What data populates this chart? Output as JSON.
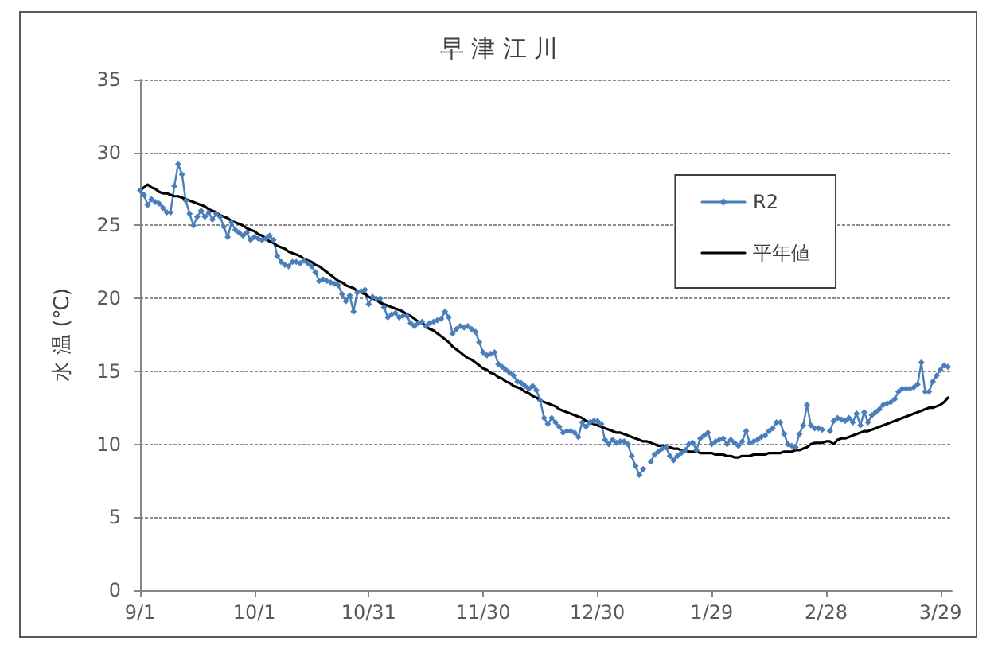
{
  "chart_data": {
    "type": "line",
    "title": "早 津 江 川",
    "ylabel": "水 温 (℃)",
    "categories": [
      "9/1",
      null,
      null,
      null,
      null,
      null,
      null,
      null,
      null,
      null,
      null,
      null,
      null,
      null,
      null,
      null,
      null,
      null,
      null,
      null,
      null,
      null,
      null,
      null,
      null,
      null,
      null,
      null,
      null,
      null,
      "10/1",
      null,
      null,
      null,
      null,
      null,
      null,
      null,
      null,
      null,
      null,
      null,
      null,
      null,
      null,
      null,
      null,
      null,
      null,
      null,
      null,
      null,
      null,
      null,
      null,
      null,
      null,
      null,
      null,
      null,
      "10/31",
      null,
      null,
      null,
      null,
      null,
      null,
      null,
      null,
      null,
      null,
      null,
      null,
      null,
      null,
      null,
      null,
      null,
      null,
      null,
      null,
      null,
      null,
      null,
      null,
      null,
      null,
      null,
      null,
      null,
      "11/30",
      null,
      null,
      null,
      null,
      null,
      null,
      null,
      null,
      null,
      null,
      null,
      null,
      null,
      null,
      null,
      null,
      null,
      null,
      null,
      null,
      null,
      null,
      null,
      null,
      null,
      null,
      null,
      null,
      null,
      "12/30",
      null,
      null,
      null,
      null,
      null,
      null,
      null,
      null,
      null,
      null,
      null,
      null,
      null,
      null,
      null,
      null,
      null,
      null,
      null,
      null,
      null,
      null,
      null,
      null,
      null,
      null,
      null,
      null,
      null,
      "1/29",
      null,
      null,
      null,
      null,
      null,
      null,
      null,
      null,
      null,
      null,
      null,
      null,
      null,
      null,
      null,
      null,
      null,
      null,
      null,
      null,
      null,
      null,
      null,
      null,
      null,
      null,
      null,
      null,
      null,
      "2/28",
      null,
      null,
      null,
      null,
      null,
      null,
      null,
      null,
      null,
      null,
      null,
      null,
      null,
      null,
      null,
      null,
      null,
      null,
      null,
      null,
      null,
      null,
      null,
      null,
      null,
      null,
      null,
      null,
      null,
      "3/29",
      null,
      null,
      null
    ],
    "ylim": [
      0,
      35
    ],
    "yticks": [
      0,
      5,
      10,
      15,
      20,
      25,
      30,
      35
    ],
    "grid": "y",
    "legend": "top right",
    "series": [
      {
        "name": "R2",
        "color": "#4a7ebb",
        "marker": "diamond",
        "values": [
          27.4,
          27.1,
          26.4,
          26.8,
          26.6,
          26.5,
          26.2,
          25.9,
          25.9,
          27.7,
          29.2,
          28.5,
          26.7,
          25.8,
          25.0,
          25.6,
          26.0,
          25.6,
          25.9,
          25.4,
          25.8,
          25.6,
          24.9,
          24.2,
          25.2,
          24.7,
          24.5,
          24.3,
          24.5,
          24.0,
          24.2,
          24.1,
          24.0,
          24.1,
          24.3,
          24.0,
          22.9,
          22.5,
          22.3,
          22.2,
          22.5,
          22.5,
          22.4,
          22.6,
          22.4,
          22.2,
          21.8,
          21.2,
          21.3,
          21.2,
          21.1,
          21.0,
          20.9,
          20.3,
          19.8,
          20.2,
          19.1,
          20.4,
          20.5,
          20.6,
          19.6,
          20.1,
          20.0,
          20.0,
          19.4,
          18.7,
          18.9,
          19.0,
          18.7,
          18.8,
          18.8,
          18.3,
          18.1,
          18.3,
          18.4,
          18.1,
          18.3,
          18.4,
          18.5,
          18.6,
          19.1,
          18.7,
          17.6,
          17.9,
          18.1,
          18.0,
          18.1,
          17.9,
          17.7,
          17.0,
          16.3,
          16.1,
          16.2,
          16.3,
          15.5,
          15.3,
          15.1,
          14.9,
          14.7,
          14.3,
          14.2,
          14.0,
          13.8,
          14.0,
          13.7,
          13.0,
          11.8,
          11.4,
          11.8,
          11.5,
          11.2,
          10.8,
          10.9,
          10.9,
          10.8,
          10.5,
          11.5,
          11.2,
          11.5,
          11.6,
          11.6,
          11.4,
          10.3,
          10.0,
          10.3,
          10.1,
          10.2,
          10.2,
          10.0,
          9.2,
          8.5,
          7.9,
          8.3,
          null,
          8.8,
          9.3,
          9.5,
          9.7,
          9.8,
          9.2,
          8.9,
          9.2,
          9.4,
          9.6,
          10.0,
          10.1,
          9.6,
          10.4,
          10.6,
          10.8,
          10.0,
          10.2,
          10.3,
          10.4,
          10.0,
          10.3,
          10.1,
          9.9,
          10.2,
          10.9,
          10.1,
          10.2,
          10.3,
          10.5,
          10.6,
          10.9,
          11.1,
          11.5,
          11.5,
          10.7,
          10.0,
          9.9,
          9.8,
          10.7,
          11.3,
          12.7,
          11.3,
          11.1,
          11.1,
          11.0,
          null,
          10.9,
          11.6,
          11.8,
          11.7,
          11.6,
          11.8,
          11.5,
          12.1,
          11.3,
          12.2,
          11.5,
          12.0,
          12.2,
          12.4,
          12.7,
          12.8,
          12.9,
          13.1,
          13.6,
          13.8,
          13.8,
          13.8,
          13.9,
          14.1,
          15.6,
          13.6,
          13.6,
          14.3,
          14.7,
          15.1,
          15.4,
          15.3,
          null
        ]
      },
      {
        "name": "平年値",
        "color": "#000000",
        "values": [
          27.4,
          27.6,
          27.8,
          27.6,
          27.5,
          27.3,
          27.2,
          27.2,
          27.1,
          27.0,
          27.0,
          26.9,
          26.8,
          26.7,
          26.6,
          26.5,
          26.4,
          26.3,
          26.1,
          26.0,
          25.9,
          25.7,
          25.6,
          25.5,
          25.3,
          25.2,
          25.1,
          25.0,
          24.8,
          24.7,
          24.6,
          24.4,
          24.3,
          24.1,
          23.9,
          23.8,
          23.6,
          23.5,
          23.4,
          23.2,
          23.1,
          23.0,
          22.9,
          22.7,
          22.6,
          22.5,
          22.3,
          22.2,
          22.0,
          21.8,
          21.6,
          21.4,
          21.2,
          21.1,
          20.9,
          20.8,
          20.7,
          20.5,
          20.4,
          20.3,
          20.1,
          20.0,
          19.9,
          19.7,
          19.6,
          19.5,
          19.4,
          19.3,
          19.2,
          19.1,
          18.9,
          18.8,
          18.6,
          18.4,
          18.3,
          18.1,
          17.9,
          17.8,
          17.6,
          17.4,
          17.2,
          17.0,
          16.7,
          16.5,
          16.3,
          16.1,
          15.9,
          15.8,
          15.6,
          15.4,
          15.2,
          15.1,
          14.9,
          14.8,
          14.6,
          14.5,
          14.3,
          14.2,
          14.0,
          13.9,
          13.8,
          13.6,
          13.5,
          13.3,
          13.2,
          13.0,
          12.9,
          12.8,
          12.7,
          12.6,
          12.4,
          12.3,
          12.2,
          12.1,
          12.0,
          11.9,
          11.8,
          11.6,
          11.5,
          11.4,
          11.3,
          11.2,
          11.1,
          11.0,
          10.9,
          10.8,
          10.8,
          10.7,
          10.6,
          10.5,
          10.4,
          10.3,
          10.2,
          10.2,
          10.1,
          10.0,
          9.9,
          9.9,
          9.8,
          9.8,
          9.7,
          9.7,
          9.6,
          9.6,
          9.5,
          9.5,
          9.5,
          9.4,
          9.4,
          9.4,
          9.4,
          9.3,
          9.3,
          9.3,
          9.2,
          9.2,
          9.1,
          9.1,
          9.2,
          9.2,
          9.2,
          9.3,
          9.3,
          9.3,
          9.3,
          9.4,
          9.4,
          9.4,
          9.4,
          9.5,
          9.5,
          9.5,
          9.6,
          9.6,
          9.7,
          9.8,
          10.0,
          10.1,
          10.1,
          10.1,
          10.2,
          10.2,
          10.0,
          10.3,
          10.4,
          10.4,
          10.5,
          10.6,
          10.7,
          10.8,
          10.9,
          10.9,
          11.0,
          11.1,
          11.2,
          11.3,
          11.4,
          11.5,
          11.6,
          11.7,
          11.8,
          11.9,
          12.0,
          12.1,
          12.2,
          12.3,
          12.4,
          12.5,
          12.5,
          12.6,
          12.7,
          12.9,
          13.2,
          null
        ]
      }
    ]
  }
}
